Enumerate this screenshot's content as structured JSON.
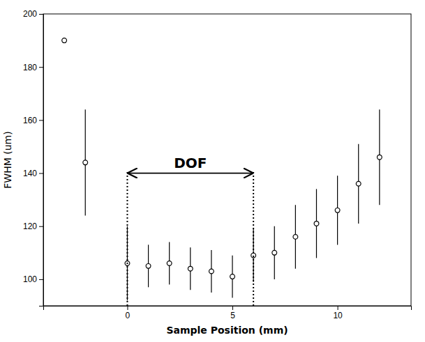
{
  "chart_data": {
    "type": "scatter",
    "x_label": "Sample Position (mm)",
    "y_label": "FWHM (um)",
    "x": [
      -3,
      -2,
      0,
      1,
      2,
      3,
      4,
      5,
      6,
      7,
      8,
      9,
      10,
      11,
      12
    ],
    "series": [
      {
        "values": [
          190,
          144,
          106,
          105,
          106,
          104,
          103,
          101,
          109,
          110,
          116,
          121,
          126,
          136,
          146
        ],
        "yerr_lo": [
          0,
          20,
          14,
          8,
          8,
          8,
          8,
          8,
          10,
          10,
          12,
          13,
          13,
          15,
          18
        ],
        "yerr_hi": [
          0,
          20,
          14,
          8,
          8,
          8,
          8,
          8,
          10,
          10,
          12,
          13,
          13,
          15,
          18
        ],
        "color": "#000000",
        "marker": "circle"
      }
    ],
    "xlim": [
      -4.0,
      13.5
    ],
    "ylim": [
      90,
      200
    ],
    "xticks": [
      0,
      5,
      10
    ],
    "yticks": [
      100,
      120,
      140,
      160,
      180,
      200
    ],
    "grid": false,
    "annotations": [
      {
        "text": "DOF",
        "x_start": 0,
        "x_end": 6,
        "y": 140
      }
    ]
  }
}
